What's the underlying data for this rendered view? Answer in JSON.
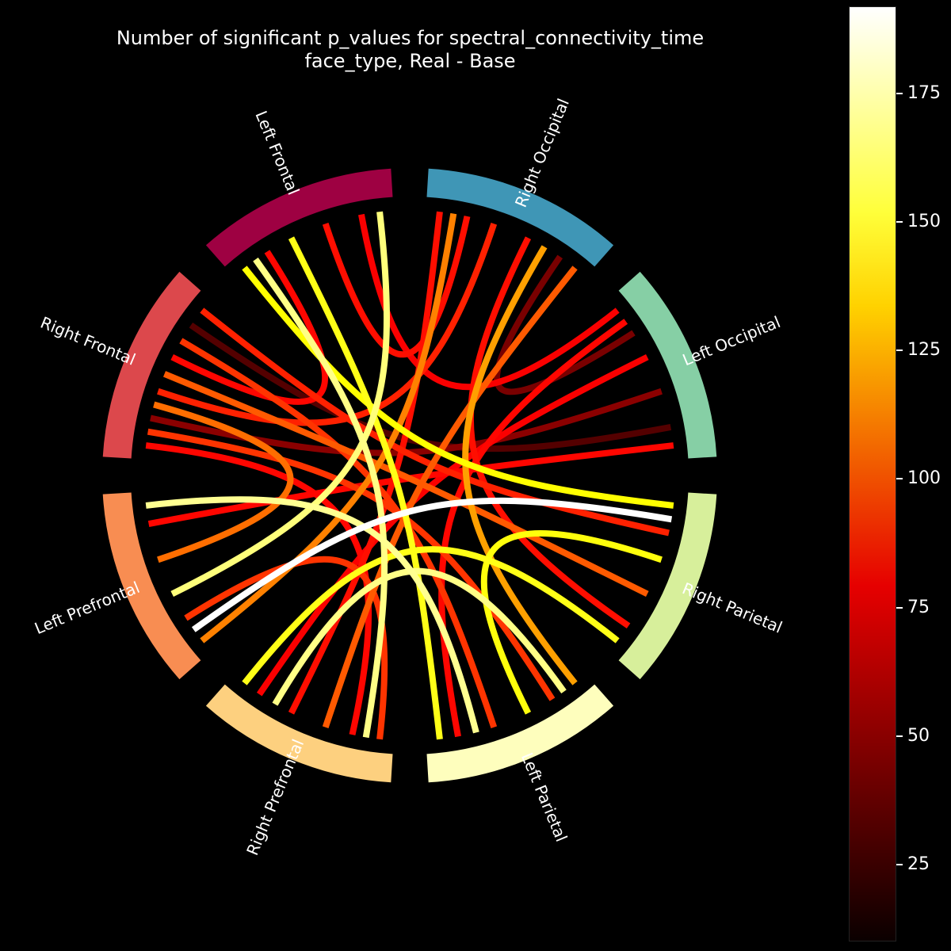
{
  "chart_data": {
    "type": "chord",
    "title": "Number of significant p_values for spectral_connectivity_time",
    "subtitle": "face_type, Real - Base",
    "nodes": [
      {
        "name": "Left Frontal",
        "color": "#9e0142"
      },
      {
        "name": "Right Occipital",
        "color": "#3f96b6"
      },
      {
        "name": "Left Occipital",
        "color": "#86cfa5"
      },
      {
        "name": "Right Parietal",
        "color": "#d7ef9b"
      },
      {
        "name": "Left Parietal",
        "color": "#fefebd"
      },
      {
        "name": "Right Prefrontal",
        "color": "#fdd07f"
      },
      {
        "name": "Left Prefrontal",
        "color": "#f88d52"
      },
      {
        "name": "Right Frontal",
        "color": "#dc484c"
      }
    ],
    "links": [
      {
        "source": "Left Frontal",
        "target": "Right Prefrontal",
        "value": 170
      },
      {
        "source": "Left Frontal",
        "target": "Left Parietal",
        "value": 150
      },
      {
        "source": "Left Frontal",
        "target": "Right Parietal",
        "value": 145
      },
      {
        "source": "Left Frontal",
        "target": "Left Prefrontal",
        "value": 168
      },
      {
        "source": "Left Frontal",
        "target": "Right Occipital",
        "value": 80
      },
      {
        "source": "Left Frontal",
        "target": "Left Occipital",
        "value": 75
      },
      {
        "source": "Left Frontal",
        "target": "Right Frontal",
        "value": 78
      },
      {
        "source": "Right Occipital",
        "target": "Left Prefrontal",
        "value": 110
      },
      {
        "source": "Right Occipital",
        "target": "Right Prefrontal",
        "value": 100
      },
      {
        "source": "Right Occipital",
        "target": "Left Parietal",
        "value": 118
      },
      {
        "source": "Right Occipital",
        "target": "Right Frontal",
        "value": 85
      },
      {
        "source": "Right Occipital",
        "target": "Right Parietal",
        "value": 80
      },
      {
        "source": "Right Occipital",
        "target": "Right Prefrontal",
        "value": 80
      },
      {
        "source": "Right Occipital",
        "target": "Left Occipital",
        "value": 40
      },
      {
        "source": "Left Occipital",
        "target": "Right Frontal",
        "value": 45
      },
      {
        "source": "Left Occipital",
        "target": "Left Prefrontal",
        "value": 78
      },
      {
        "source": "Left Occipital",
        "target": "Right Prefrontal",
        "value": 75
      },
      {
        "source": "Left Occipital",
        "target": "Left Parietal",
        "value": 78
      },
      {
        "source": "Right Parietal",
        "target": "Left Prefrontal",
        "value": 192
      },
      {
        "source": "Right Parietal",
        "target": "Right Prefrontal",
        "value": 150
      },
      {
        "source": "Right Parietal",
        "target": "Left Parietal",
        "value": 148
      },
      {
        "source": "Right Parietal",
        "target": "Right Frontal",
        "value": 100
      },
      {
        "source": "Right Parietal",
        "target": "Right Frontal",
        "value": 85
      },
      {
        "source": "Left Parietal",
        "target": "Left Prefrontal",
        "value": 172
      },
      {
        "source": "Left Parietal",
        "target": "Right Prefrontal",
        "value": 170
      },
      {
        "source": "Left Parietal",
        "target": "Right Frontal",
        "value": 90
      },
      {
        "source": "Right Prefrontal",
        "target": "Right Frontal",
        "value": 78
      },
      {
        "source": "Right Prefrontal",
        "target": "Left Prefrontal",
        "value": 90
      },
      {
        "source": "Left Prefrontal",
        "target": "Right Frontal",
        "value": 105
      },
      {
        "source": "Right Frontal",
        "target": "Left Occipital",
        "value": 30
      },
      {
        "source": "Right Frontal",
        "target": "Left Parietal",
        "value": 90
      }
    ],
    "colorbar": {
      "colormap": "hot",
      "range": [
        10,
        192
      ],
      "ticks": [
        25,
        50,
        75,
        100,
        125,
        150,
        175
      ]
    }
  }
}
